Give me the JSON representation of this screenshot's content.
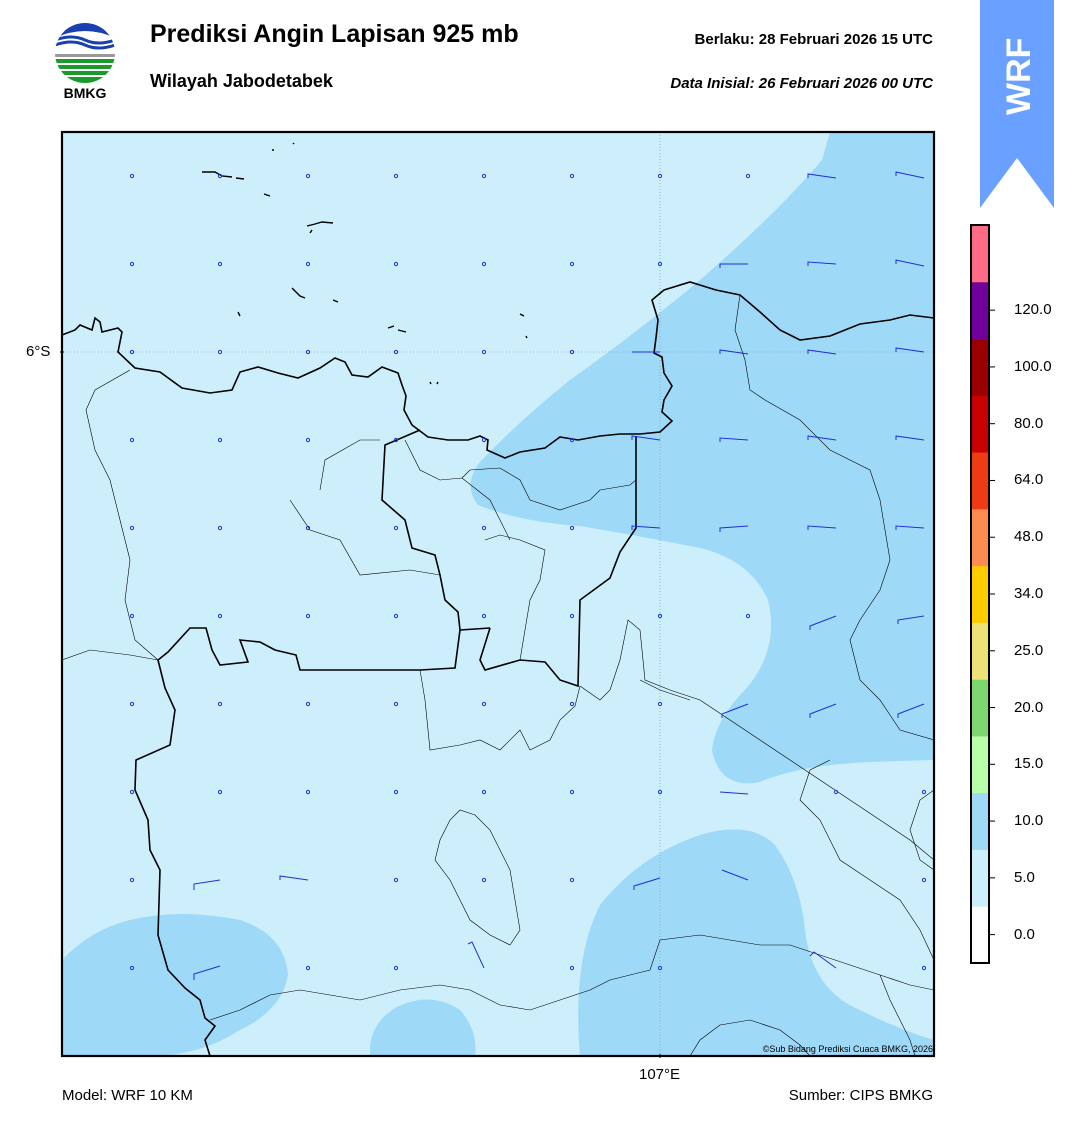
{
  "header": {
    "logo_text": "BMKG",
    "title": "Prediksi Angin Lapisan 925 mb",
    "subtitle": "Wilayah Jabodetabek",
    "valid": "Berlaku:  28 Februari 2026 15 UTC",
    "initial": "Data Inisial:  26 Februari 2026 00 UTC",
    "banner": "WRF"
  },
  "map": {
    "lat_label": "6°S",
    "lon_label": "107°E",
    "copyright": "©Sub Bidang Prediksi Cuaca BMKG, 2026",
    "colors": {
      "shade_0_5": "#cdeffb",
      "shade_5_10": "#9fd9f8",
      "coast": "#000000",
      "barb": "#1f2fd6"
    }
  },
  "colorbar": {
    "tick_labels": [
      "0.0",
      "5.0",
      "10.0",
      "15.0",
      "20.0",
      "25.0",
      "34.0",
      "48.0",
      "64.0",
      "80.0",
      "100.0",
      "120.0"
    ],
    "colors": [
      "#ffffff",
      "#cdeffb",
      "#9fd9f8",
      "#b9ffa9",
      "#7cd86e",
      "#ede277",
      "#ffcc00",
      "#ff8c4f",
      "#ef3b13",
      "#c80000",
      "#9b0000",
      "#70009a",
      "#ff6b85"
    ]
  },
  "footer": {
    "model": "Model: WRF 10 KM",
    "source": "Sumber: CIPS BMKG"
  }
}
